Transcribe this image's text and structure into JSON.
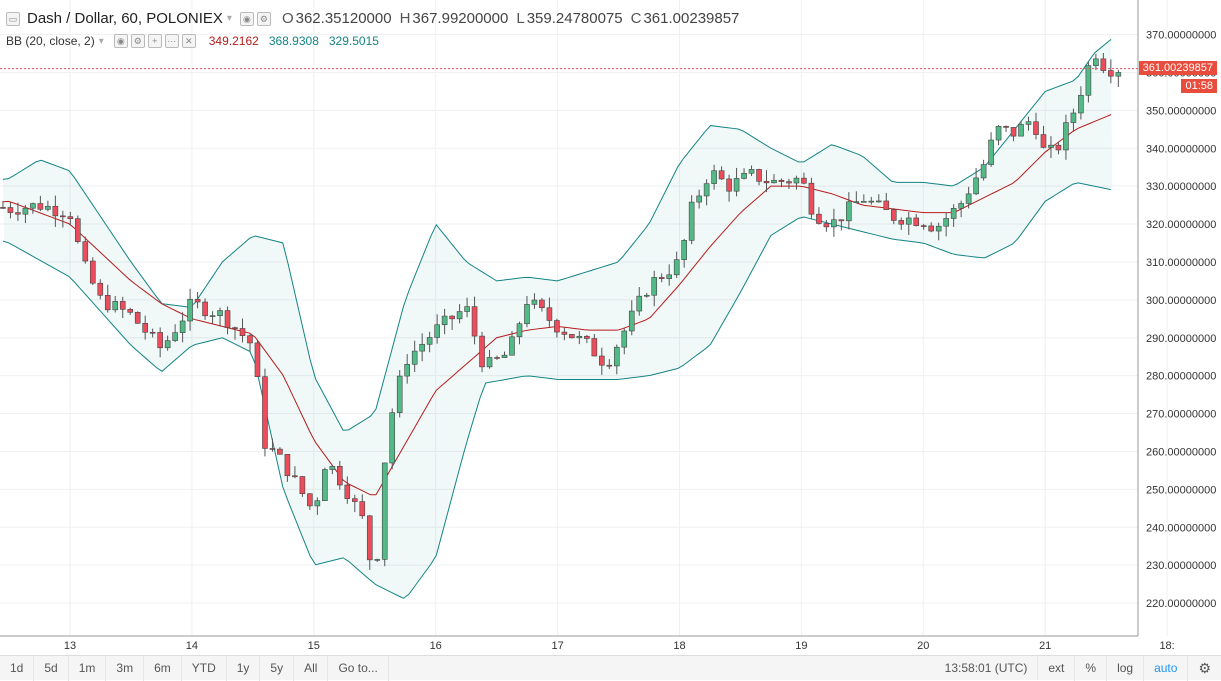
{
  "legend": {
    "symbol": "Dash / Dollar, 60, POLONIEX",
    "o_label": "O",
    "o_value": "362.35120000",
    "h_label": "H",
    "h_value": "367.99200000",
    "l_label": "L",
    "l_value": "359.24780075",
    "c_label": "C",
    "c_value": "361.00239857",
    "bb_title": "BB (20, close, 2)",
    "bb_basis": "349.2162",
    "bb_upper": "368.9308",
    "bb_lower": "329.5015",
    "bb_basis_color": "#b71c1c",
    "bb_band_color": "#138484"
  },
  "last_price": {
    "label": "361.00239857",
    "countdown": "01:58"
  },
  "toolbar": {
    "ranges": [
      "1d",
      "5d",
      "1m",
      "3m",
      "6m",
      "YTD",
      "1y",
      "5y",
      "All"
    ],
    "goto": "Go to...",
    "time": "13:58:01 (UTC)",
    "ext": "ext",
    "percent": "%",
    "log": "log",
    "auto": "auto",
    "settings_icon": "gear-icon"
  },
  "chart_data": {
    "type": "candlestick",
    "title": "Dash / Dollar, 60, POLONIEX",
    "x_ticks": [
      "13",
      "14",
      "15",
      "16",
      "17",
      "18",
      "19",
      "20",
      "21",
      "18:"
    ],
    "y_ticks": [
      "220.00000000",
      "230.00000000",
      "240.00000000",
      "250.00000000",
      "260.00000000",
      "270.00000000",
      "280.00000000",
      "290.00000000",
      "300.00000000",
      "310.00000000",
      "320.00000000",
      "330.00000000",
      "340.00000000",
      "350.00000000",
      "360.00000000",
      "370.00000000"
    ],
    "ylim": [
      213,
      372
    ],
    "up_color": "#53b987",
    "down_color": "#eb4d5c",
    "close_series": [
      [
        12.0,
        329
      ],
      [
        12.25,
        326
      ],
      [
        12.5,
        324
      ],
      [
        12.75,
        325
      ],
      [
        13.0,
        323
      ],
      [
        13.1,
        310
      ],
      [
        13.25,
        300
      ],
      [
        13.5,
        296
      ],
      [
        13.75,
        287
      ],
      [
        14.0,
        299
      ],
      [
        14.25,
        296
      ],
      [
        14.5,
        288
      ],
      [
        14.6,
        262
      ],
      [
        14.75,
        257
      ],
      [
        15.0,
        244
      ],
      [
        15.1,
        258
      ],
      [
        15.25,
        251
      ],
      [
        15.4,
        242
      ],
      [
        15.5,
        225
      ],
      [
        15.6,
        265
      ],
      [
        15.75,
        284
      ],
      [
        16.0,
        292
      ],
      [
        16.25,
        298
      ],
      [
        16.4,
        282
      ],
      [
        16.6,
        286
      ],
      [
        16.75,
        300
      ],
      [
        17.0,
        293
      ],
      [
        17.25,
        288
      ],
      [
        17.4,
        283
      ],
      [
        17.6,
        295
      ],
      [
        17.75,
        304
      ],
      [
        18.0,
        310
      ],
      [
        18.1,
        324
      ],
      [
        18.25,
        334
      ],
      [
        18.4,
        330
      ],
      [
        18.6,
        333
      ],
      [
        18.75,
        331
      ],
      [
        19.0,
        332
      ],
      [
        19.1,
        323
      ],
      [
        19.25,
        320
      ],
      [
        19.5,
        327
      ],
      [
        19.75,
        322
      ],
      [
        20.0,
        321
      ],
      [
        20.1,
        319
      ],
      [
        20.3,
        325
      ],
      [
        20.5,
        336
      ],
      [
        20.6,
        345
      ],
      [
        20.75,
        344
      ],
      [
        20.9,
        348
      ],
      [
        21.0,
        338
      ],
      [
        21.1,
        340
      ],
      [
        21.25,
        351
      ],
      [
        21.4,
        366
      ],
      [
        21.5,
        361
      ],
      [
        21.6,
        361
      ]
    ],
    "bb_upper_series": [
      [
        12.0,
        330
      ],
      [
        12.5,
        332
      ],
      [
        12.75,
        337
      ],
      [
        13.0,
        334
      ],
      [
        13.5,
        310
      ],
      [
        13.75,
        299
      ],
      [
        14.0,
        298
      ],
      [
        14.25,
        310
      ],
      [
        14.5,
        317
      ],
      [
        14.75,
        315
      ],
      [
        15.0,
        280
      ],
      [
        15.25,
        265
      ],
      [
        15.5,
        270
      ],
      [
        15.75,
        300
      ],
      [
        16.0,
        320
      ],
      [
        16.25,
        310
      ],
      [
        16.5,
        305
      ],
      [
        16.75,
        306
      ],
      [
        17.0,
        305
      ],
      [
        17.5,
        310
      ],
      [
        17.75,
        320
      ],
      [
        18.0,
        336
      ],
      [
        18.25,
        346
      ],
      [
        18.5,
        345
      ],
      [
        18.75,
        340
      ],
      [
        19.0,
        336
      ],
      [
        19.25,
        341
      ],
      [
        19.5,
        338
      ],
      [
        19.75,
        331
      ],
      [
        20.0,
        331
      ],
      [
        20.25,
        330
      ],
      [
        20.5,
        335
      ],
      [
        20.75,
        345
      ],
      [
        21.0,
        355
      ],
      [
        21.25,
        358
      ],
      [
        21.4,
        365
      ],
      [
        21.55,
        369
      ]
    ],
    "bb_basis_series": [
      [
        12.0,
        325
      ],
      [
        12.5,
        326
      ],
      [
        13.0,
        320
      ],
      [
        13.5,
        305
      ],
      [
        13.75,
        299
      ],
      [
        14.0,
        295
      ],
      [
        14.5,
        291
      ],
      [
        14.75,
        280
      ],
      [
        15.0,
        263
      ],
      [
        15.25,
        252
      ],
      [
        15.5,
        248
      ],
      [
        15.75,
        262
      ],
      [
        16.0,
        276
      ],
      [
        16.25,
        283
      ],
      [
        16.5,
        290
      ],
      [
        16.75,
        292
      ],
      [
        17.0,
        293
      ],
      [
        17.25,
        292
      ],
      [
        17.5,
        292
      ],
      [
        17.75,
        295
      ],
      [
        18.0,
        304
      ],
      [
        18.25,
        314
      ],
      [
        18.5,
        323
      ],
      [
        18.75,
        330
      ],
      [
        19.0,
        330
      ],
      [
        19.25,
        328
      ],
      [
        19.5,
        325
      ],
      [
        19.75,
        324
      ],
      [
        20.0,
        323
      ],
      [
        20.25,
        323
      ],
      [
        20.5,
        327
      ],
      [
        20.75,
        331
      ],
      [
        21.0,
        339
      ],
      [
        21.25,
        345
      ],
      [
        21.55,
        349
      ]
    ],
    "bb_lower_series": [
      [
        12.0,
        320
      ],
      [
        12.5,
        315
      ],
      [
        13.0,
        306
      ],
      [
        13.5,
        288
      ],
      [
        13.75,
        281
      ],
      [
        14.0,
        288
      ],
      [
        14.25,
        290
      ],
      [
        14.5,
        286
      ],
      [
        14.75,
        250
      ],
      [
        15.0,
        230
      ],
      [
        15.25,
        232
      ],
      [
        15.5,
        225
      ],
      [
        15.75,
        221
      ],
      [
        16.0,
        232
      ],
      [
        16.25,
        262
      ],
      [
        16.4,
        278
      ],
      [
        16.75,
        280
      ],
      [
        17.0,
        279
      ],
      [
        17.5,
        279
      ],
      [
        17.75,
        280
      ],
      [
        18.0,
        282
      ],
      [
        18.25,
        288
      ],
      [
        18.5,
        302
      ],
      [
        18.75,
        317
      ],
      [
        19.0,
        322
      ],
      [
        19.25,
        320
      ],
      [
        19.5,
        318
      ],
      [
        19.75,
        316
      ],
      [
        20.0,
        315
      ],
      [
        20.25,
        312
      ],
      [
        20.5,
        311
      ],
      [
        20.75,
        315
      ],
      [
        21.0,
        326
      ],
      [
        21.25,
        331
      ],
      [
        21.55,
        329
      ]
    ]
  }
}
